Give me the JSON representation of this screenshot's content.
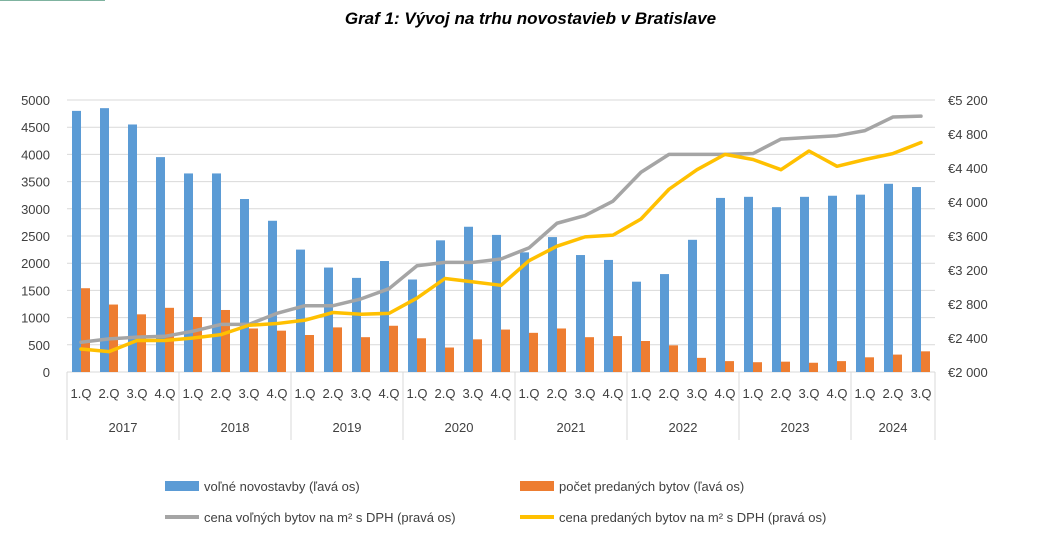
{
  "chart_data": {
    "type": "bar+line",
    "title": "Graf 1: Vývoj na trhu novostavieb v Bratislave",
    "years": [
      "2017",
      "2018",
      "2019",
      "2020",
      "2021",
      "2022",
      "2023",
      "2024"
    ],
    "quarters_per_year": [
      4,
      4,
      4,
      4,
      4,
      4,
      4,
      3
    ],
    "quarter_labels": [
      "1.Q",
      "2.Q",
      "3.Q",
      "4.Q"
    ],
    "left_axis": {
      "min": 0,
      "max": 5000,
      "step": 500,
      "ticks": [
        "0",
        "500",
        "1000",
        "1500",
        "2000",
        "2500",
        "3000",
        "3500",
        "4000",
        "4500",
        "5000"
      ]
    },
    "right_axis": {
      "min": 2000,
      "max": 5200,
      "step": 400,
      "ticks": [
        "€2 000",
        "€2 400",
        "€2 800",
        "€3 200",
        "€3 600",
        "€4 000",
        "€4 400",
        "€4 800",
        "€5 200"
      ]
    },
    "grid": true,
    "legend_position": "bottom",
    "series": [
      {
        "name": "voľné novostavby (ľavá os)",
        "type": "bar",
        "axis": "left",
        "color": "#5b9bd5",
        "values": [
          4800,
          4850,
          4550,
          3950,
          3650,
          3650,
          3180,
          2780,
          2250,
          1920,
          1730,
          2040,
          1700,
          2420,
          2670,
          2520,
          2200,
          2480,
          2150,
          2060,
          1660,
          1800,
          2430,
          3200,
          3220,
          3030,
          3220,
          3240,
          3260,
          3460,
          3400
        ]
      },
      {
        "name": "počet predaných bytov (ľavá os)",
        "type": "bar",
        "axis": "left",
        "color": "#ed7d31",
        "values": [
          1540,
          1240,
          1060,
          1180,
          1010,
          1140,
          800,
          760,
          680,
          820,
          640,
          850,
          620,
          450,
          600,
          780,
          720,
          800,
          640,
          660,
          570,
          490,
          260,
          200,
          180,
          190,
          170,
          200,
          270,
          320,
          380
        ]
      },
      {
        "name": "cena voľných bytov na m² s DPH (pravá os)",
        "type": "line",
        "axis": "right",
        "color": "#a5a5a5",
        "values": [
          2350,
          2390,
          2410,
          2420,
          2480,
          2560,
          2560,
          2690,
          2780,
          2780,
          2860,
          2980,
          3250,
          3290,
          3290,
          3330,
          3460,
          3750,
          3840,
          4010,
          4350,
          4560,
          4560,
          4560,
          4570,
          4740,
          4760,
          4780,
          4840,
          5000,
          5010
        ]
      },
      {
        "name": "cena predaných bytov na m² s  DPH (pravá os)",
        "type": "line",
        "axis": "right",
        "color": "#ffc000",
        "values": [
          2270,
          2240,
          2370,
          2370,
          2400,
          2440,
          2550,
          2570,
          2610,
          2700,
          2680,
          2690,
          2870,
          3100,
          3060,
          3020,
          3310,
          3480,
          3590,
          3610,
          3800,
          4150,
          4380,
          4560,
          4500,
          4380,
          4600,
          4420,
          4500,
          4570,
          4700
        ]
      }
    ]
  }
}
